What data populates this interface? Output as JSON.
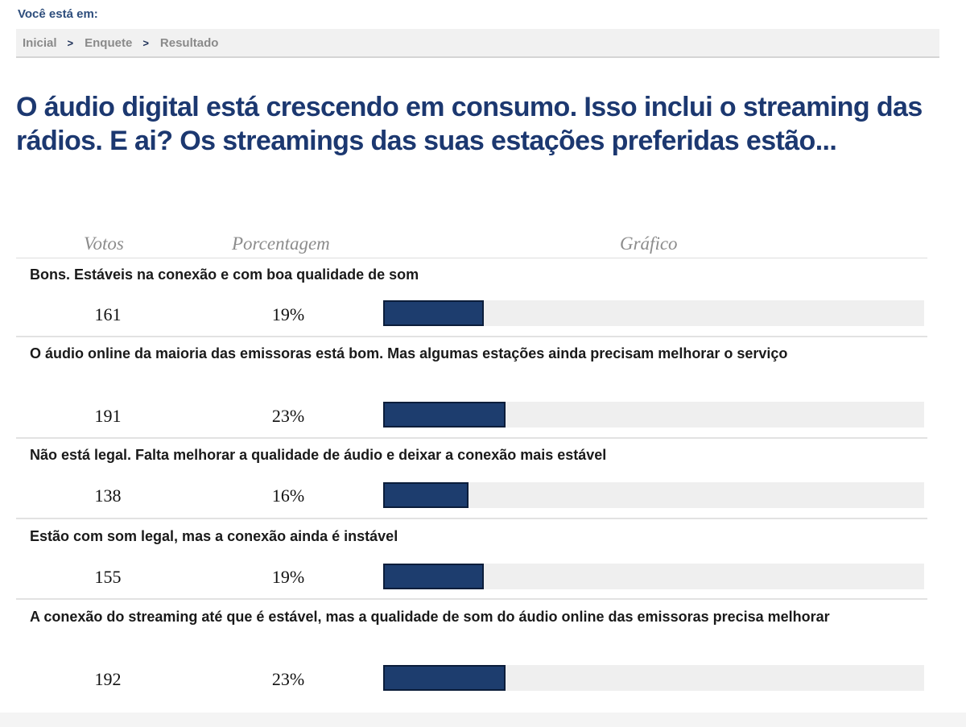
{
  "location": {
    "label": "Você está em:",
    "breadcrumb": [
      "Inicial",
      "Enquete",
      "Resultado"
    ],
    "separator": ">"
  },
  "poll": {
    "title": "O áudio digital está crescendo em consumo. Isso inclui o streaming das rádios. E ai? Os streamings das suas estações preferidas estão...",
    "columns": {
      "votes": "Votos",
      "percent": "Porcentagem",
      "chart": "Gráfico"
    },
    "answers": [
      {
        "label": "Bons. Estáveis na conexão e com boa qualidade de som",
        "votes": "161",
        "percent": "19%",
        "fraction": 0.19
      },
      {
        "label": "O áudio online da maioria das emissoras está bom. Mas algumas estações ainda precisam melhorar o serviço",
        "votes": "191",
        "percent": "23%",
        "fraction": 0.23
      },
      {
        "label": "Não está legal. Falta melhorar a qualidade de áudio e deixar a conexão mais estável",
        "votes": "138",
        "percent": "16%",
        "fraction": 0.16
      },
      {
        "label": "Estão com som legal, mas a conexão ainda é instável",
        "votes": "155",
        "percent": "19%",
        "fraction": 0.19
      },
      {
        "label": "A conexão do streaming até que é estável, mas a qualidade de som do áudio online das emissoras precisa melhorar",
        "votes": "192",
        "percent": "23%",
        "fraction": 0.23
      }
    ]
  },
  "colors": {
    "bar": "#1d3d6e",
    "track": "#efefef",
    "title": "#1c3870"
  }
}
